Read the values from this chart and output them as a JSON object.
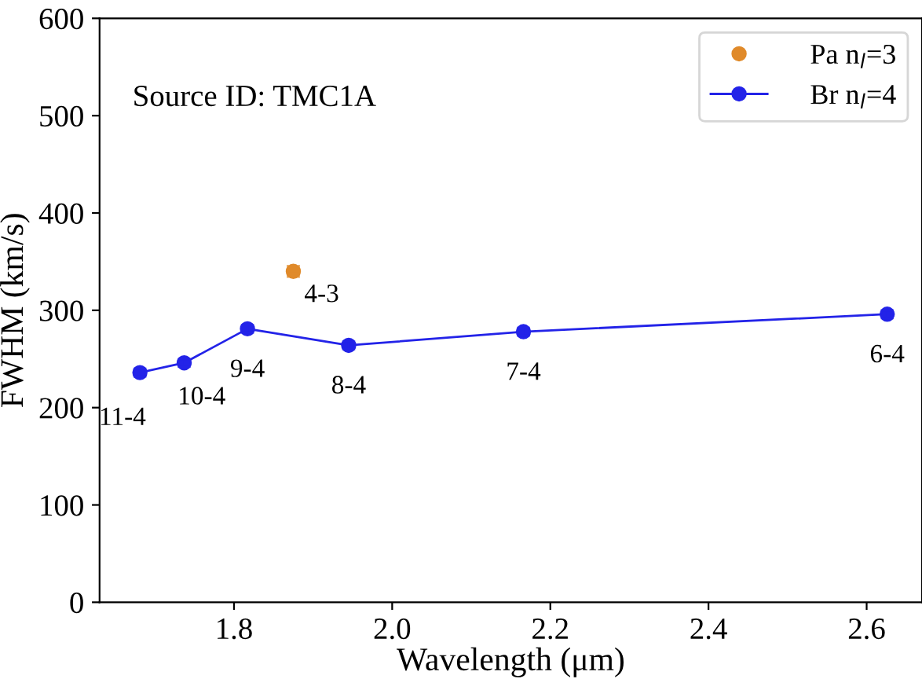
{
  "chart_data": {
    "type": "line",
    "xlabel": "Wavelength (μm)",
    "ylabel": "FWHM (km/s)",
    "xlim": [
      1.63,
      2.67
    ],
    "xticks": [
      1.8,
      {
        "value": 2.0,
        "label": "2.0"
      },
      2.2,
      2.4,
      2.6
    ],
    "ylim": [
      0,
      600
    ],
    "yticks": [
      0,
      100,
      200,
      300,
      400,
      500,
      600
    ],
    "series": [
      {
        "name": "Pa n$_{l}$=3",
        "type": "scatter",
        "color": "#e08a2a",
        "x": [
          1.875
        ],
        "values": [
          340
        ],
        "xerrors": [
          0.007
        ]
      },
      {
        "name": "Br n$_{l}$=4",
        "color": "#2323e8",
        "x": [
          1.681,
          1.737,
          1.817,
          1.945,
          2.166,
          2.626
        ],
        "values": [
          236,
          246,
          281,
          264,
          278,
          296
        ],
        "errors": [
          4,
          4,
          4,
          4,
          4,
          4
        ]
      }
    ],
    "marker": "circle",
    "grid": false,
    "legend": "top right",
    "annotations": [
      "Source ID: TMC1A",
      {
        "text": "4-3",
        "x": 1.875,
        "y": 340
      },
      {
        "text": "11-4",
        "x": 1.681,
        "y": 236
      },
      {
        "text": "10-4",
        "x": 1.737,
        "y": 246
      },
      {
        "text": "9-4",
        "x": 1.817,
        "y": 281
      },
      {
        "text": "8-4",
        "x": 1.945,
        "y": 264
      },
      {
        "text": "7-4",
        "x": 2.166,
        "y": 278
      },
      {
        "text": "6-4",
        "x": 2.626,
        "y": 296
      }
    ]
  }
}
